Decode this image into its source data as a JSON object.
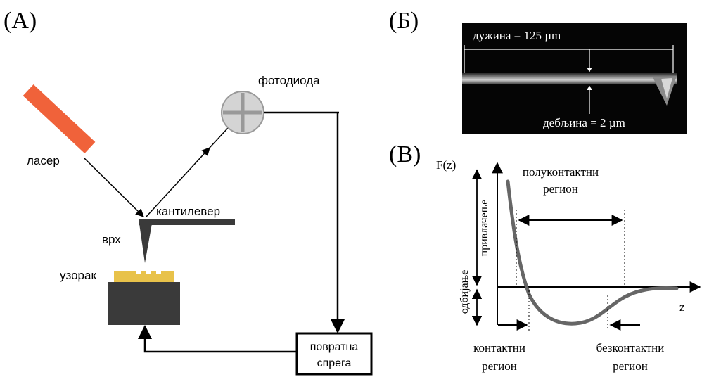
{
  "panel_a": {
    "letter": "(A)",
    "labels": {
      "laser": "ласер",
      "photodiode": "фотодиода",
      "cantilever": "кантилевер",
      "tip": "врх",
      "sample": "узорак",
      "feedback_line1": "повратна",
      "feedback_line2": "спрега"
    },
    "colors": {
      "laser": "#f0623a",
      "sample": "#e8c24a",
      "dark": "#3a3a3a",
      "photodiode_fill": "#d4d4d4"
    }
  },
  "panel_b": {
    "letter": "(Б)",
    "length_label": "дужина = 125 µm",
    "thickness_label": "дебљина = 2 µm"
  },
  "panel_c": {
    "letter": "(В)",
    "y_axis_label": "F(z)",
    "x_axis_label": "z",
    "attraction_label": "привлачење",
    "repulsion_label": "одбијање",
    "semicontact_line1": "полуконтактни",
    "semicontact_line2": "регион",
    "contact_line1": "контактни",
    "contact_line2": "регион",
    "noncontact_line1": "безконтактни",
    "noncontact_line2": "регион"
  }
}
